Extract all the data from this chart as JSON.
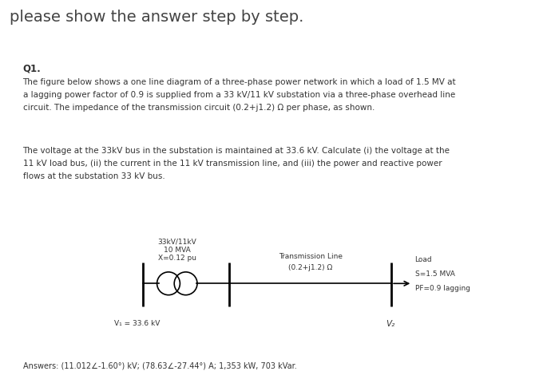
{
  "title": "please show the answer step by step.",
  "title_fontsize": 14,
  "title_color": "#444444",
  "bg_color": "#dedad4",
  "page_bg": "#ffffff",
  "question_label": "Q1.",
  "paragraph1": "The figure below shows a one line diagram of a three-phase power network in which a load of 1.5 MV at\na lagging power factor of 0.9 is supplied from a 33 kV/11 kV substation via a three-phase overhead line\ncircuit. The impedance of the transmission circuit (0.2+j1.2) Ω per phase, as shown.",
  "paragraph2": "The voltage at the 33kV bus in the substation is maintained at 33.6 kV. Calculate (i) the voltage at the\n11 kV load bus, (ii) the current in the 11 kV transmission line, and (iii) the power and reactive power\nflows at the substation 33 kV bus.",
  "transformer_label1": "33kV/11kV",
  "transformer_label2": "10 MVA",
  "transformer_label3": "X=0.12 pu",
  "transmission_label1": "Transmission Line",
  "transmission_label2": "(0.2+j1.2) Ω",
  "load_label1": "Load",
  "load_label2": "S=1.5 MVA",
  "load_label3": "PF=0.9 lagging",
  "vs_label": "V₁ = 33.6 kV",
  "vr_label": "V₂",
  "answers": "Answers: (11.012∠-1.60°) kV; (78.63∠-27.44°) A; 1,353 kW, 703 kVar.",
  "font_size_text": 7.5,
  "font_size_diagram": 6.5,
  "text_color": "#333333"
}
